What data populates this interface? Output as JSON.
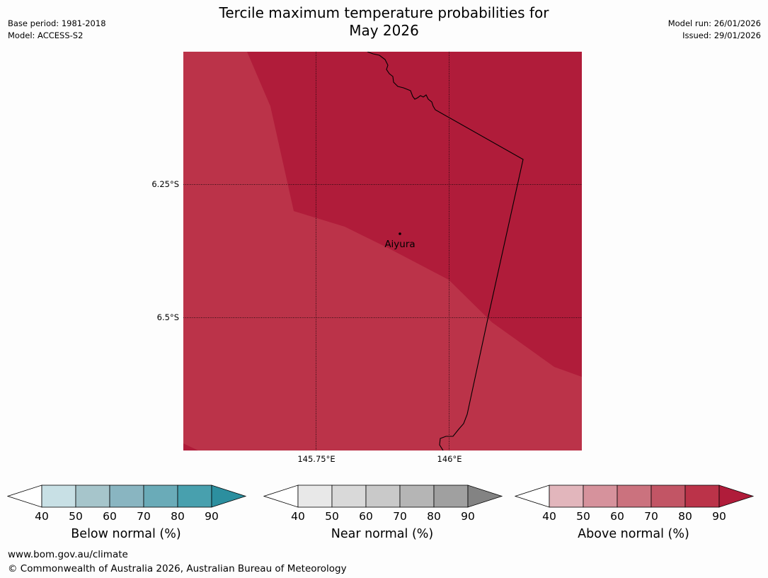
{
  "header": {
    "title_line1": "Tercile maximum temperature probabilities for",
    "title_line2": "May 2026",
    "base_period": "Base period: 1981-2018",
    "model": "Model: ACCESS-S2",
    "model_run": "Model run: 26/01/2026",
    "issued": "Issued: 29/01/2026"
  },
  "map": {
    "latitude_labels": [
      "6.25°S",
      "6.5°S"
    ],
    "longitude_labels": [
      "145.75°E",
      "146°E"
    ],
    "place": "Aiyura",
    "region_colors": {
      "above_80": "#b01c3a",
      "above_70_80": "#bb3349"
    }
  },
  "colorbars": [
    {
      "label": "Below normal (%)",
      "ticks": [
        "40",
        "50",
        "60",
        "70",
        "80",
        "90"
      ],
      "colors": [
        "#ffffff",
        "#c8e0e5",
        "#a6c5cb",
        "#89b5c1",
        "#6aabb8",
        "#48a0ae",
        "#2c8f9f"
      ]
    },
    {
      "label": "Near normal (%)",
      "ticks": [
        "40",
        "50",
        "60",
        "70",
        "80",
        "90"
      ],
      "colors": [
        "#ffffff",
        "#e8e8e8",
        "#d9d9d9",
        "#c9c9c9",
        "#b5b5b5",
        "#a0a0a0",
        "#838383"
      ]
    },
    {
      "label": "Above normal (%)",
      "ticks": [
        "40",
        "50",
        "60",
        "70",
        "80",
        "90"
      ],
      "colors": [
        "#ffffff",
        "#e2b6bc",
        "#d6929c",
        "#cb727e",
        "#c25565",
        "#bb3349",
        "#b01c3a"
      ]
    }
  ],
  "footer": {
    "url": "www.bom.gov.au/climate",
    "copyright": "© Commonwealth of Australia 2026, Australian Bureau of Meteorology"
  }
}
